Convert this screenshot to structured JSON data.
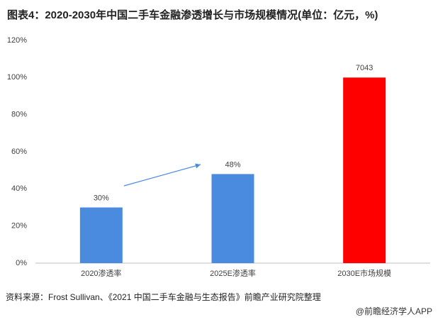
{
  "chart_data": {
    "type": "bar",
    "title": "图表4：2020-2030年中国二手车金融渗透增长与市场规模情况(单位：亿元，%)",
    "categories": [
      "2020渗透率",
      "2025E渗透率",
      "2030E市场规模"
    ],
    "values": [
      30,
      48,
      100
    ],
    "value_labels": [
      "30%",
      "48%",
      null
    ],
    "annotations": [
      "7043"
    ],
    "colors": [
      "#4a8be0",
      "#4a8be0",
      "#ff0000"
    ],
    "ylim": [
      0,
      120
    ],
    "yticks": [
      {
        "value": 0,
        "label": "0%"
      },
      {
        "value": 20,
        "label": "20%"
      },
      {
        "value": 40,
        "label": "40%"
      },
      {
        "value": 60,
        "label": "60%"
      },
      {
        "value": 80,
        "label": "80%"
      },
      {
        "value": 100,
        "label": "100%"
      },
      {
        "value": 120,
        "label": "120%"
      }
    ],
    "grid": false,
    "source": "资料来源：Frost Sullivan、《2021 中国二手车金融与生态报告》前瞻产业研究院整理",
    "footer": "@前瞻经济学人APP"
  }
}
